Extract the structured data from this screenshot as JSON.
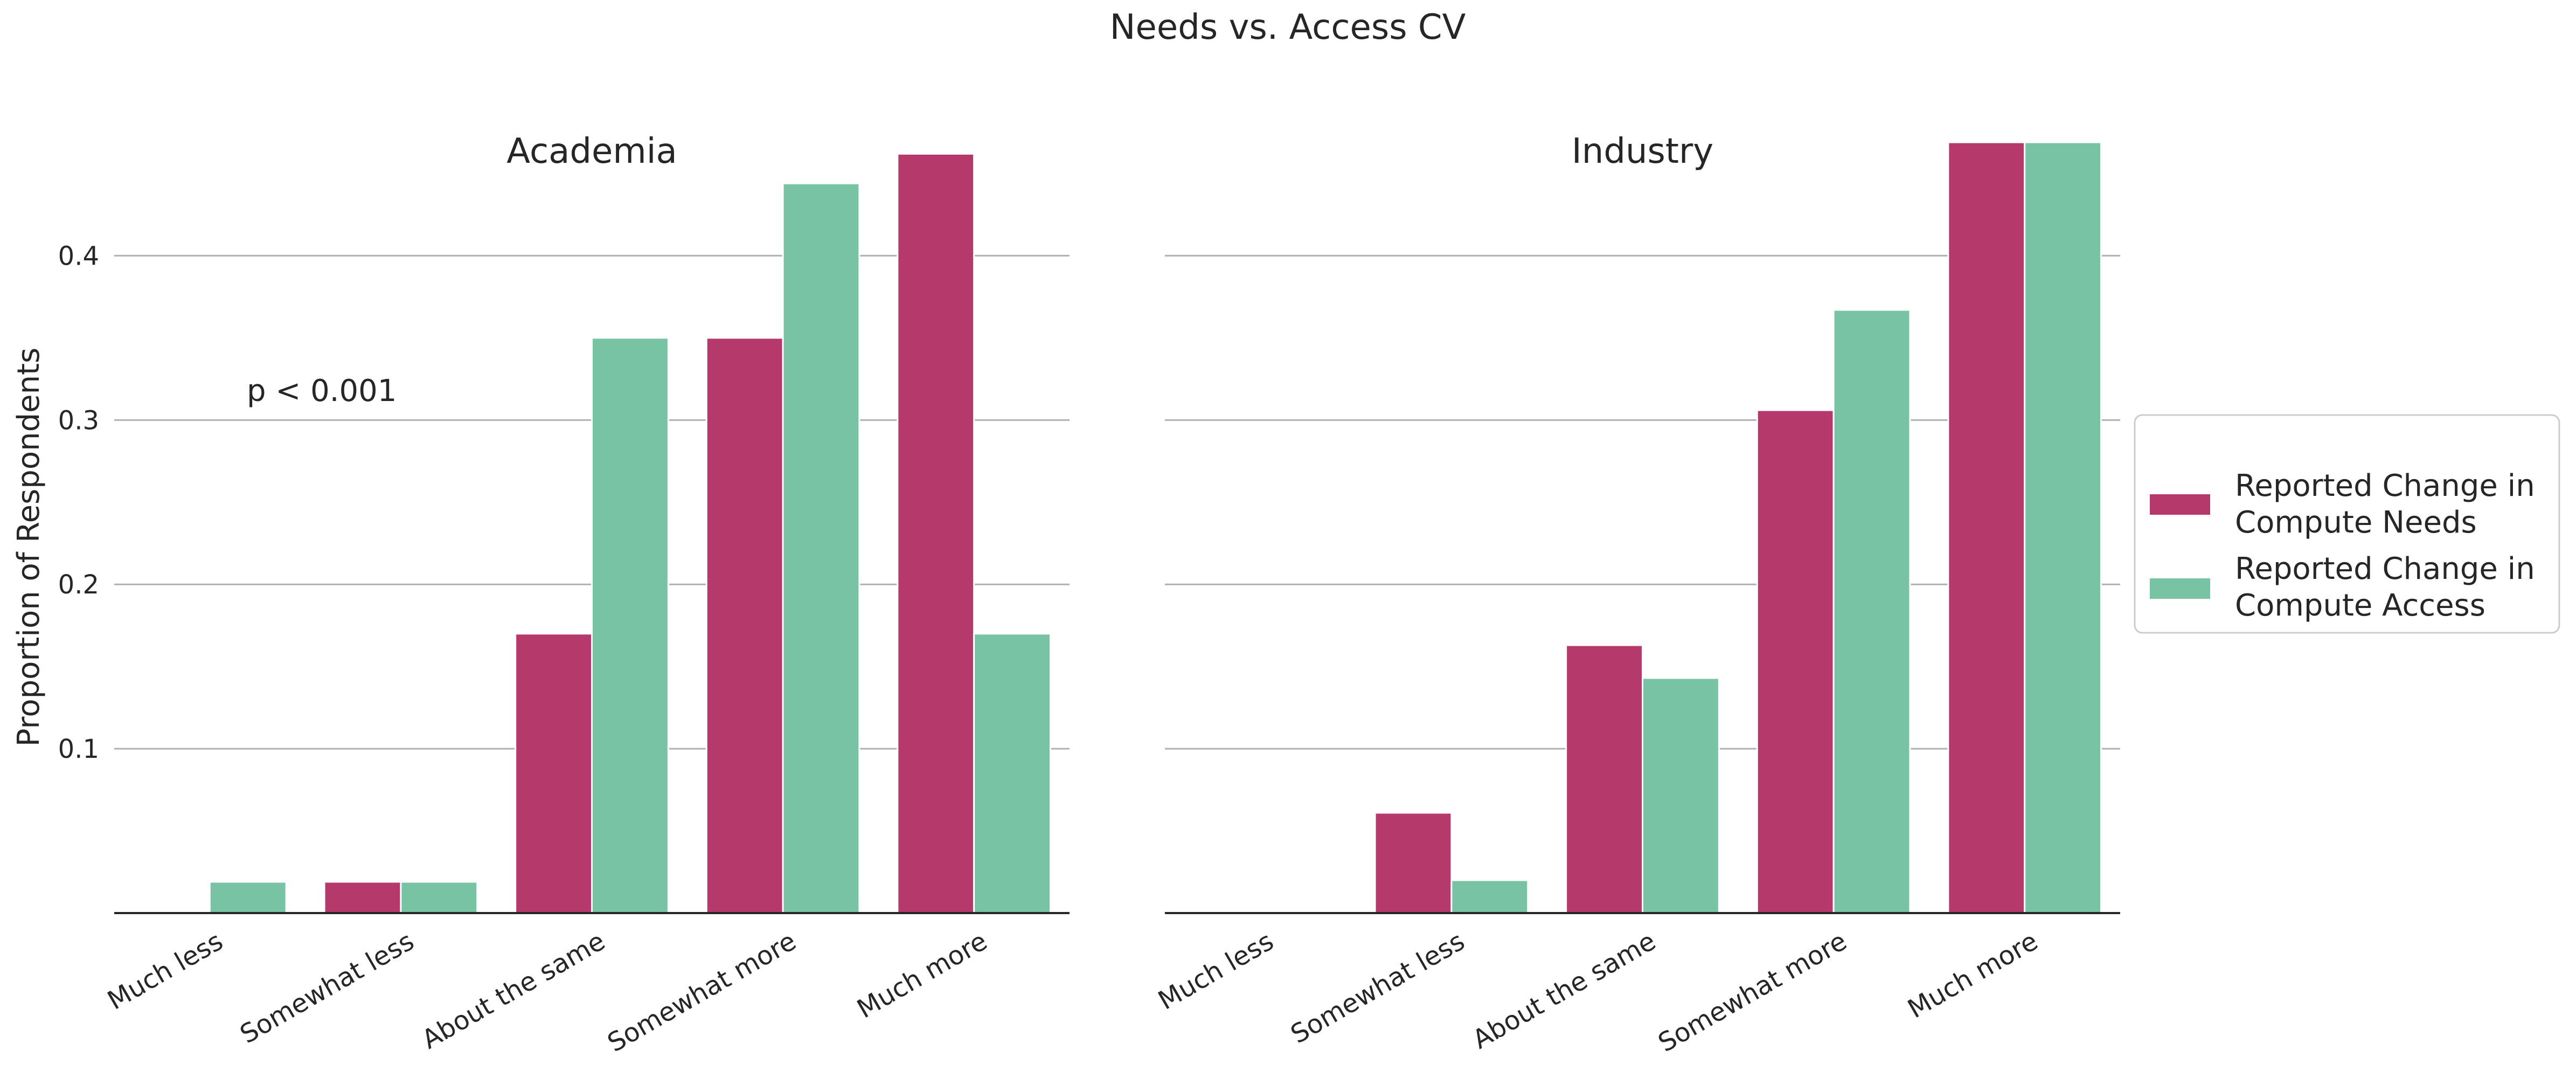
{
  "title": "Needs vs. Access CV",
  "ylabel": "Proportion of Respondents",
  "colors": {
    "needs": "#b5396b",
    "access": "#79c3a5"
  },
  "chart_data": [
    {
      "type": "bar",
      "title": "Academia",
      "annotation": "p < 0.001",
      "categories": [
        "Much less",
        "Somewhat less",
        "About the same",
        "Somewhat more",
        "Much more"
      ],
      "ylabel": "Proportion of Respondents",
      "ylim": [
        0,
        0.47
      ],
      "yticks": [
        0.1,
        0.2,
        0.3,
        0.4
      ],
      "grid": "horizontal",
      "series": [
        {
          "name": "Reported Change in Compute Needs",
          "values": [
            0.0,
            0.019,
            0.17,
            0.35,
            0.462
          ]
        },
        {
          "name": "Reported Change in Compute Access",
          "values": [
            0.019,
            0.019,
            0.35,
            0.444,
            0.17
          ]
        }
      ]
    },
    {
      "type": "bar",
      "title": "Industry",
      "categories": [
        "Much less",
        "Somewhat less",
        "About the same",
        "Somewhat more",
        "Much more"
      ],
      "ylim": [
        0,
        0.47
      ],
      "yticks": [
        0.1,
        0.2,
        0.3,
        0.4
      ],
      "grid": "horizontal",
      "legend_position": "right",
      "series": [
        {
          "name": "Reported Change in Compute Needs",
          "values": [
            0.0,
            0.061,
            0.163,
            0.306,
            0.469
          ]
        },
        {
          "name": "Reported Change in Compute Access",
          "values": [
            0.0,
            0.02,
            0.143,
            0.367,
            0.469
          ]
        }
      ]
    }
  ],
  "legend": {
    "items": [
      {
        "line1": "Reported Change in",
        "line2": "Compute Needs"
      },
      {
        "line1": "Reported Change in",
        "line2": "Compute Access"
      }
    ]
  }
}
